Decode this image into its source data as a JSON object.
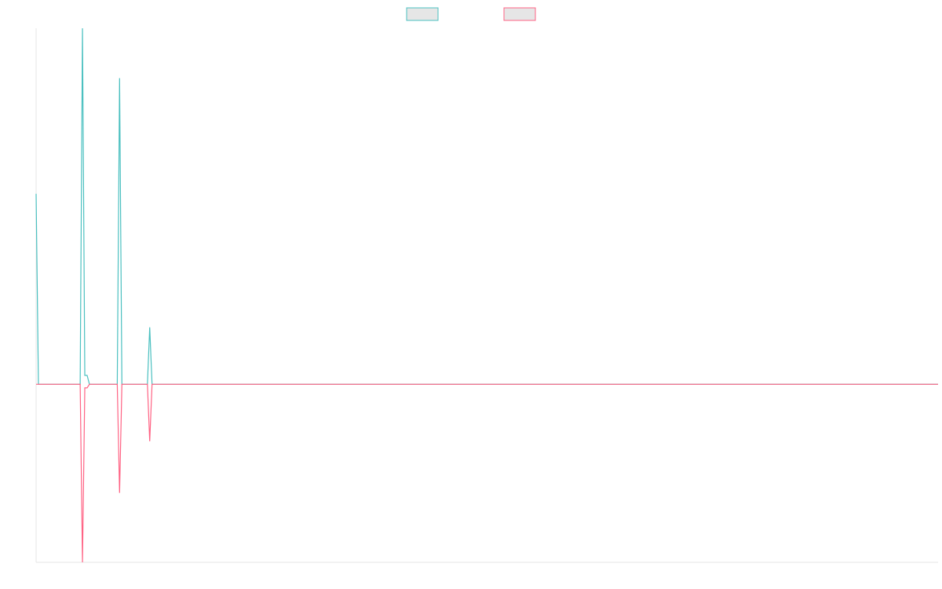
{
  "chart_data": {
    "type": "line",
    "title": "",
    "xlabel": "",
    "ylabel": "",
    "grid": false,
    "legend": "top-center",
    "x_count": 390,
    "ylim": [
      -1,
      2
    ],
    "series": [
      {
        "name": "",
        "color": "#4bc0c0",
        "fill": "#e6e6e6",
        "points": [
          [
            0,
            1.07
          ],
          [
            1,
            0
          ],
          [
            19,
            0
          ],
          [
            20,
            2
          ],
          [
            21,
            0.05
          ],
          [
            22,
            0.05
          ],
          [
            23,
            0
          ],
          [
            35,
            0
          ],
          [
            36,
            1.72
          ],
          [
            37,
            0
          ],
          [
            48,
            0
          ],
          [
            49,
            0.32
          ],
          [
            50,
            0
          ],
          [
            389,
            0
          ]
        ]
      },
      {
        "name": "",
        "color": "#ff6384",
        "fill": "#e6e6e6",
        "points": [
          [
            0,
            0
          ],
          [
            19,
            0
          ],
          [
            20,
            -1
          ],
          [
            21,
            -0.02
          ],
          [
            22,
            -0.02
          ],
          [
            23,
            0
          ],
          [
            35,
            0
          ],
          [
            36,
            -0.61
          ],
          [
            37,
            0
          ],
          [
            48,
            0
          ],
          [
            49,
            -0.32
          ],
          [
            50,
            0
          ],
          [
            389,
            0
          ]
        ]
      }
    ]
  }
}
